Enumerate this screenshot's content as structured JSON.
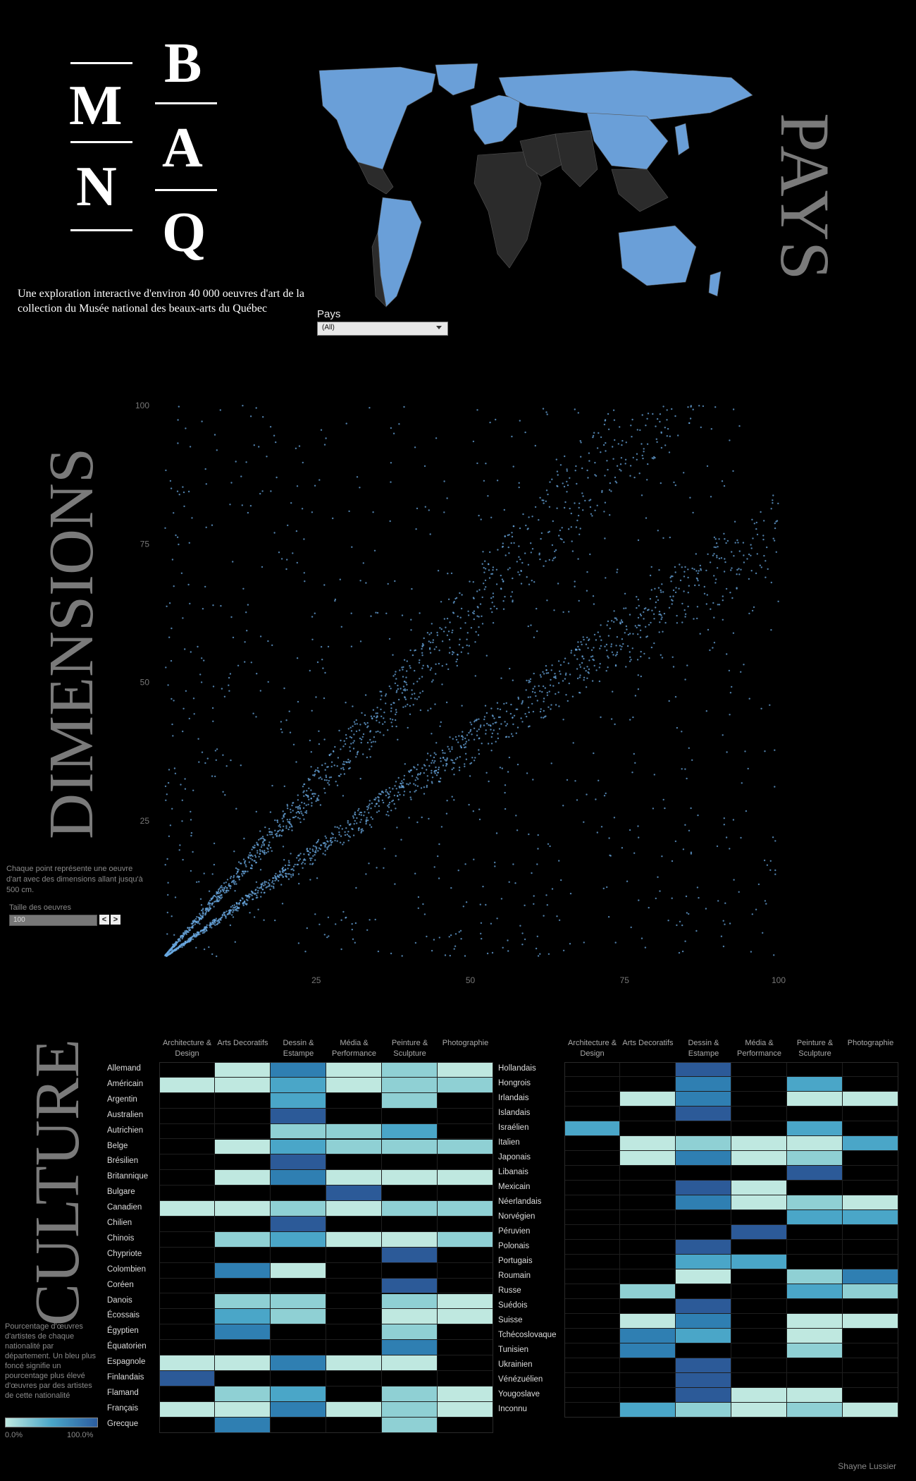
{
  "header": {
    "logo_letters": [
      "M",
      "N",
      "B",
      "A",
      "Q"
    ],
    "subtitle": "Une exploration interactive d'environ 40 000 oeuvres d'art de la collection du Musée national des beaux-arts du Québec"
  },
  "map_section": {
    "title": "PAYS",
    "filter_label": "Pays",
    "filter_value": "(All)",
    "highlight_color": "#6a9fd8"
  },
  "dimensions_section": {
    "title": "DIMENSIONS",
    "caption": "Chaque point représente une oeuvre d'art avec des dimensions allant jusqu'à 500 cm.",
    "size_label": "Taille des oeuvres",
    "size_value": "100",
    "prev_label": "<",
    "next_label": ">"
  },
  "chart_data": {
    "type": "scatter",
    "x_ticks": [
      "25",
      "50",
      "75",
      "100"
    ],
    "y_ticks": [
      "100",
      "75",
      "50",
      "25"
    ],
    "xlim": [
      0,
      100
    ],
    "ylim": [
      0,
      100
    ],
    "point_color": "#6aa8e0"
  },
  "culture_section": {
    "title": "CULTURE",
    "columns": [
      "Architecture & Design",
      "Arts Decoratifs",
      "Dessin & Estampe",
      "Média & Performance",
      "Peinture & Sculpture",
      "Photographie"
    ],
    "left_rows": [
      "Allemand",
      "Américain",
      "Argentin",
      "Australien",
      "Autrichien",
      "Belge",
      "Brésilien",
      "Britannique",
      "Bulgare",
      "Canadien",
      "Chilien",
      "Chinois",
      "Chypriote",
      "Colombien",
      "Coréen",
      "Danois",
      "Écossais",
      "Égyptien",
      "Équatorien",
      "Espagnole",
      "Finlandais",
      "Flamand",
      "Français",
      "Grecque"
    ],
    "right_rows": [
      "Hollandais",
      "Hongrois",
      "Irlandais",
      "Islandais",
      "Israélien",
      "Italien",
      "Japonais",
      "Libanais",
      "Mexicain",
      "Néerlandais",
      "Norvégien",
      "Péruvien",
      "Polonais",
      "Portugais",
      "Roumain",
      "Russe",
      "Suédois",
      "Suisse",
      "Tchécoslovaque",
      "Tunisien",
      "Ukrainien",
      "Vénézuélien",
      "Yougoslave",
      "Inconnu"
    ],
    "left_values": [
      [
        0,
        1,
        4,
        1,
        2,
        1
      ],
      [
        1,
        1,
        3,
        1,
        2,
        2
      ],
      [
        0,
        0,
        3,
        0,
        2,
        0
      ],
      [
        0,
        0,
        5,
        0,
        0,
        0
      ],
      [
        0,
        0,
        2,
        2,
        3,
        0
      ],
      [
        0,
        1,
        3,
        2,
        2,
        2
      ],
      [
        0,
        0,
        5,
        0,
        0,
        0
      ],
      [
        0,
        1,
        4,
        1,
        1,
        1
      ],
      [
        0,
        0,
        0,
        5,
        0,
        0
      ],
      [
        1,
        1,
        2,
        1,
        2,
        2
      ],
      [
        0,
        0,
        5,
        0,
        0,
        0
      ],
      [
        0,
        2,
        3,
        1,
        1,
        2
      ],
      [
        0,
        0,
        0,
        0,
        5,
        0
      ],
      [
        0,
        4,
        1,
        0,
        0,
        0
      ],
      [
        0,
        0,
        0,
        0,
        5,
        0
      ],
      [
        0,
        2,
        2,
        0,
        2,
        1
      ],
      [
        0,
        3,
        2,
        0,
        1,
        1
      ],
      [
        0,
        4,
        0,
        0,
        2,
        0
      ],
      [
        0,
        0,
        0,
        0,
        4,
        0
      ],
      [
        1,
        1,
        4,
        1,
        1,
        0
      ],
      [
        5,
        0,
        0,
        0,
        0,
        0
      ],
      [
        0,
        2,
        3,
        0,
        2,
        1
      ],
      [
        1,
        1,
        4,
        1,
        2,
        1
      ],
      [
        0,
        4,
        0,
        0,
        2,
        0
      ]
    ],
    "right_values": [
      [
        0,
        0,
        5,
        0,
        0,
        0
      ],
      [
        0,
        0,
        4,
        0,
        3,
        0
      ],
      [
        0,
        1,
        4,
        0,
        1,
        1
      ],
      [
        0,
        0,
        5,
        0,
        0,
        0
      ],
      [
        3,
        0,
        0,
        0,
        3,
        0
      ],
      [
        0,
        1,
        2,
        1,
        1,
        3
      ],
      [
        0,
        1,
        4,
        1,
        2,
        0
      ],
      [
        0,
        0,
        0,
        0,
        5,
        0
      ],
      [
        0,
        0,
        5,
        1,
        0,
        0
      ],
      [
        0,
        0,
        4,
        1,
        2,
        1
      ],
      [
        0,
        0,
        0,
        0,
        3,
        3
      ],
      [
        0,
        0,
        0,
        5,
        0,
        0
      ],
      [
        0,
        0,
        5,
        0,
        0,
        0
      ],
      [
        0,
        0,
        3,
        3,
        0,
        0
      ],
      [
        0,
        0,
        1,
        0,
        2,
        4
      ],
      [
        0,
        2,
        0,
        0,
        3,
        2
      ],
      [
        0,
        0,
        5,
        0,
        0,
        0
      ],
      [
        0,
        1,
        4,
        0,
        1,
        1
      ],
      [
        0,
        4,
        3,
        0,
        1,
        0
      ],
      [
        0,
        4,
        0,
        0,
        2,
        0
      ],
      [
        0,
        0,
        5,
        0,
        0,
        0
      ],
      [
        0,
        0,
        5,
        0,
        0,
        0
      ],
      [
        0,
        0,
        5,
        1,
        1,
        0
      ],
      [
        0,
        3,
        2,
        1,
        2,
        1
      ]
    ],
    "legend_caption": "Pourcentage d'œuvres d'artistes de chaque nationalité par département. Un bleu plus foncé signifie un pourcentage plus élevé d'œuvres par des artistes de cette nationalité",
    "legend_min": "0.0%",
    "legend_max": "100.0%",
    "palette": [
      "#000000",
      "#bfe8e0",
      "#8fd0d4",
      "#4aa6c8",
      "#2f7fb2",
      "#2c5a98"
    ]
  },
  "footer": {
    "author": "Shayne Lussier"
  }
}
